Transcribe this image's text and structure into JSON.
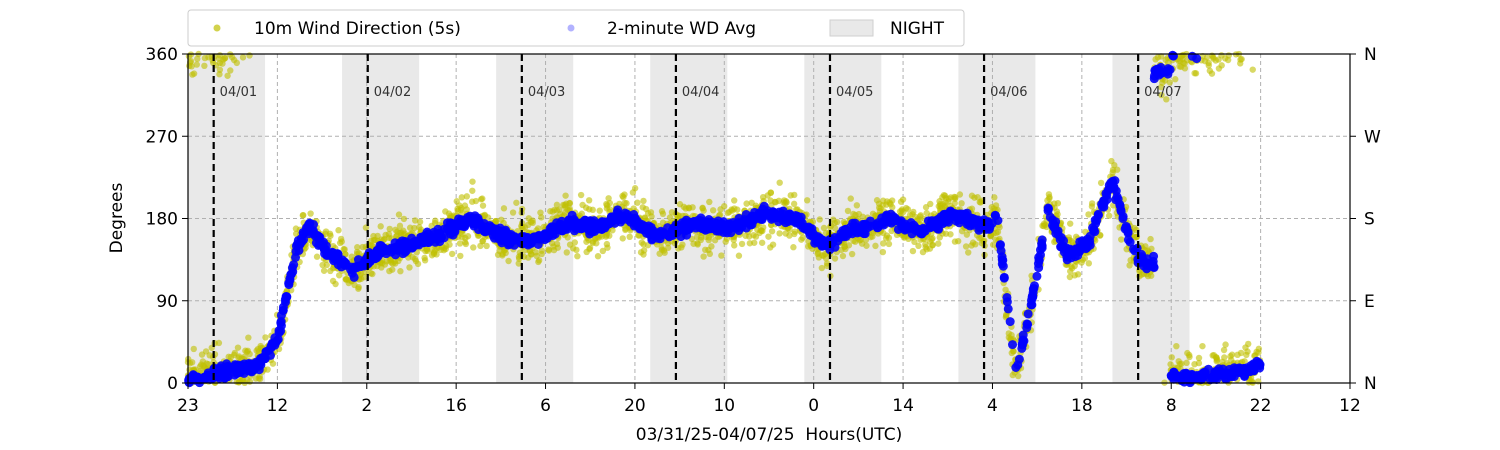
{
  "chart_data": {
    "type": "scatter",
    "title": "",
    "xlabel": "03/31/25-04/07/25  Hours(UTC)",
    "ylabel": "Degrees",
    "x_start": "2025-03-31 23:00 UTC",
    "x_end": "2025-04-08 12:00 UTC",
    "x_tick_labels": [
      "23",
      "12",
      "2",
      "16",
      "6",
      "20",
      "10",
      "0",
      "14",
      "4",
      "18",
      "8",
      "22",
      "12"
    ],
    "y_ticks": [
      0,
      90,
      180,
      270,
      360
    ],
    "y_right_labels": [
      "N",
      "E",
      "S",
      "W",
      "N"
    ],
    "ylim": [
      0,
      360
    ],
    "grid": true,
    "legend_position": "top",
    "legend": {
      "wd5s": "10m Wind Direction (5s)",
      "wd2m": "2-minute WD Avg",
      "night": "NIGHT"
    },
    "day_markers": [
      "04/01",
      "04/02",
      "04/03",
      "04/04",
      "04/05",
      "04/06",
      "04/07"
    ],
    "day_marker_times": [
      "2025-04-01 03:00",
      "2025-04-02 03:00",
      "2025-04-03 03:00",
      "2025-04-04 03:00",
      "2025-04-05 03:00",
      "2025-04-06 03:00",
      "2025-04-07 03:00"
    ],
    "night_periods": [
      {
        "start": "2025-03-31 23:00",
        "end": "2025-04-01 11:00"
      },
      {
        "start": "2025-04-01 23:00",
        "end": "2025-04-02 11:00"
      },
      {
        "start": "2025-04-02 23:00",
        "end": "2025-04-03 11:00"
      },
      {
        "start": "2025-04-03 23:00",
        "end": "2025-04-04 11:00"
      },
      {
        "start": "2025-04-04 23:00",
        "end": "2025-04-05 11:00"
      },
      {
        "start": "2025-04-05 23:00",
        "end": "2025-04-06 11:00"
      },
      {
        "start": "2025-04-06 23:00",
        "end": "2025-04-07 11:00"
      }
    ],
    "series": [
      {
        "name": "2-minute WD Avg",
        "color": "#0000ff",
        "x": [
          "2025-03-31 23:00",
          "2025-04-01 04:00",
          "2025-04-01 10:00",
          "2025-04-01 13:00",
          "2025-04-01 16:00",
          "2025-04-01 18:00",
          "2025-04-01 21:00",
          "2025-04-02 01:00",
          "2025-04-02 05:00",
          "2025-04-02 09:00",
          "2025-04-02 14:00",
          "2025-04-02 19:00",
          "2025-04-03 00:00",
          "2025-04-03 05:00",
          "2025-04-03 10:00",
          "2025-04-03 15:00",
          "2025-04-03 19:00",
          "2025-04-04 00:00",
          "2025-04-04 06:00",
          "2025-04-04 12:00",
          "2025-04-04 17:00",
          "2025-04-04 22:00",
          "2025-04-05 02:00",
          "2025-04-05 06:00",
          "2025-04-05 12:00",
          "2025-04-05 17:00",
          "2025-04-05 22:00",
          "2025-04-06 04:00",
          "2025-04-06 05:00",
          "2025-04-06 08:00",
          "2025-04-06 11:00",
          "2025-04-06 13:00",
          "2025-04-06 16:00",
          "2025-04-06 19:00",
          "2025-04-06 23:00",
          "2025-04-07 02:00",
          "2025-04-07 04:00",
          "2025-04-07 07:00",
          "2025-04-07 09:00",
          "2025-04-07 12:00",
          "2025-04-07 16:00",
          "2025-04-07 20:00",
          "2025-04-07 22:00"
        ],
        "y": [
          5,
          10,
          20,
          50,
          150,
          170,
          140,
          125,
          145,
          150,
          160,
          180,
          160,
          155,
          175,
          170,
          185,
          160,
          175,
          170,
          185,
          180,
          150,
          165,
          180,
          165,
          185,
          170,
          185,
          10,
          110,
          190,
          140,
          150,
          220,
          150,
          130,
          340,
          5,
          5,
          10,
          15,
          20
        ]
      },
      {
        "name": "10m Wind Direction (5s)",
        "color": "#bfbf00",
        "y_spread": 45
      }
    ]
  }
}
